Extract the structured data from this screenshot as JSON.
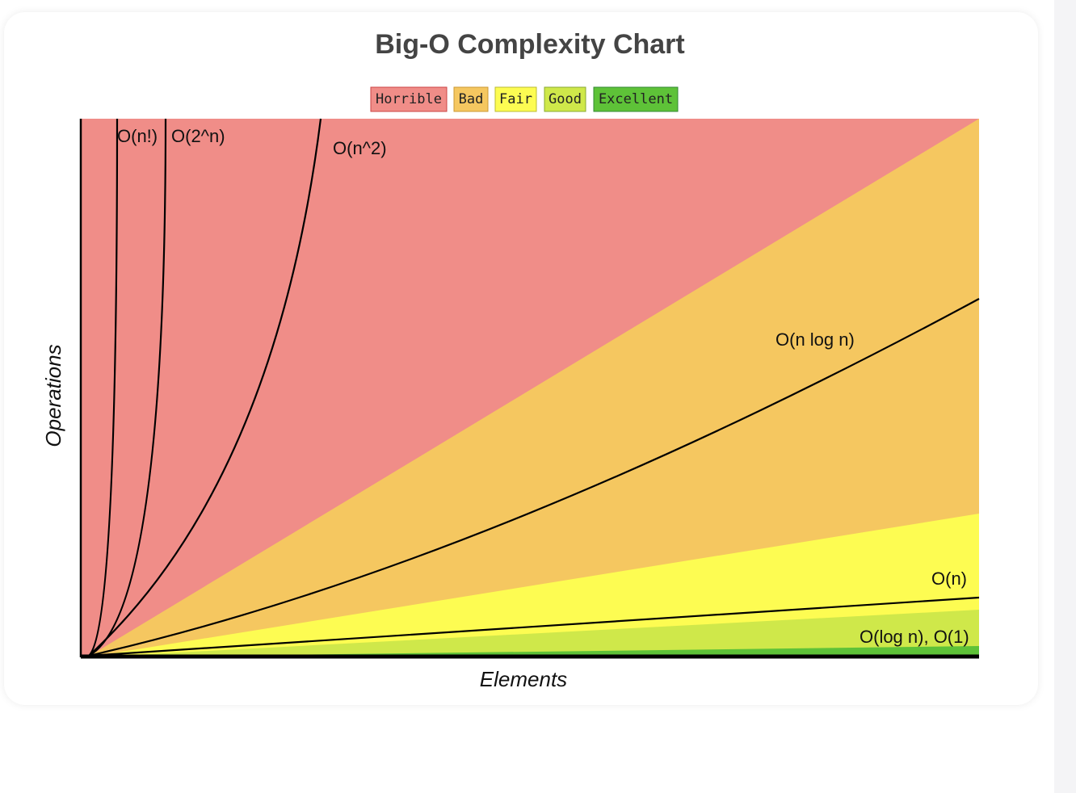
{
  "title": "Big-O Complexity Chart",
  "legend": [
    "Horrible",
    "Bad",
    "Fair",
    "Good",
    "Excellent"
  ],
  "curves": [
    "O(n!)",
    "O(2^n)",
    "O(n^2)",
    "O(n log n)",
    "O(n)",
    "O(log n), O(1)"
  ],
  "x_axis_label": "Elements",
  "y_axis_label": "Operations"
}
